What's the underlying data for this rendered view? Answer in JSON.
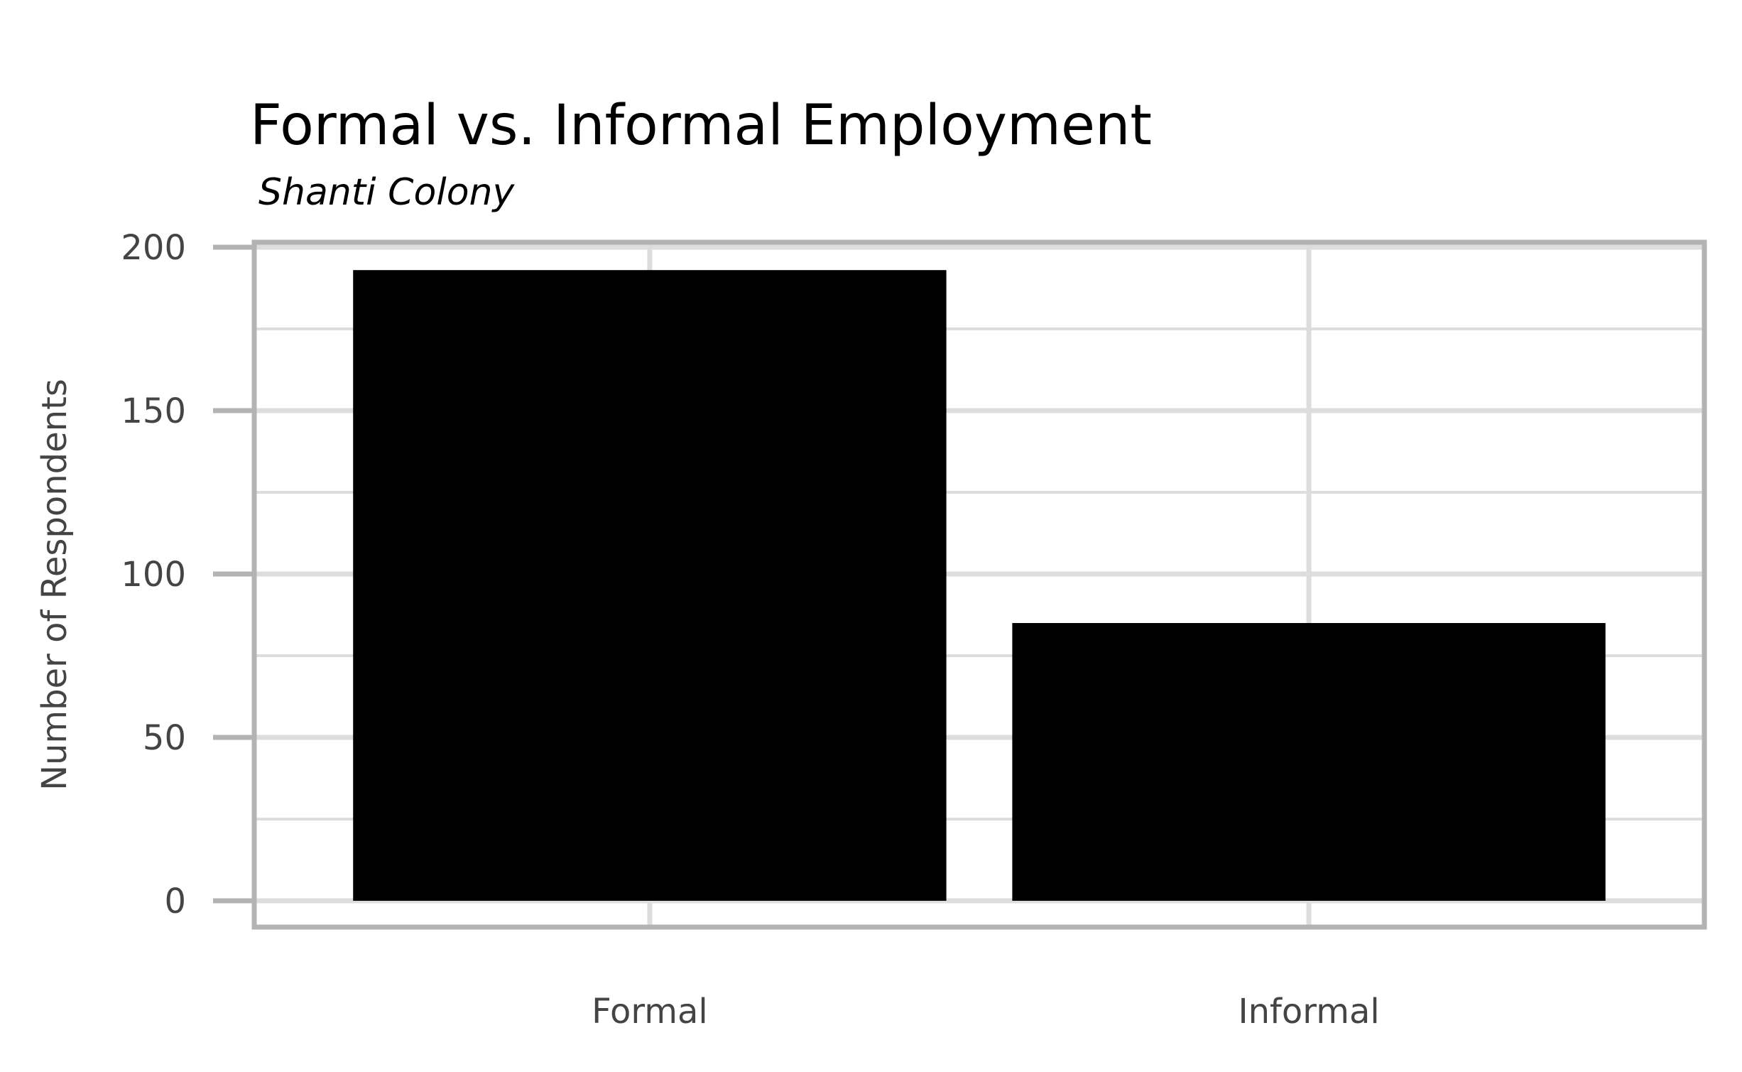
{
  "chart_data": {
    "type": "bar",
    "title": "Formal vs. Informal Employment",
    "subtitle": "Shanti Colony",
    "xlabel": "",
    "ylabel": "Number of Respondents",
    "categories": [
      "Formal",
      "Informal"
    ],
    "values": [
      193,
      85
    ],
    "ylim": [
      0,
      200
    ],
    "yticks": [
      "0",
      "50",
      "100",
      "150",
      "200"
    ],
    "grid": true,
    "legend": "none",
    "colors": {
      "bar": "#000000",
      "grid": "#dddddd",
      "panel_border": "#b3b3b3",
      "axis_text": "#444444"
    }
  }
}
